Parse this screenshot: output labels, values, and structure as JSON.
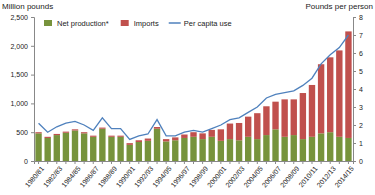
{
  "chart_data": {
    "type": "bar",
    "stacked": true,
    "legend": "top-left",
    "grid": false,
    "y_label": "Million pounds",
    "y2_label": "Pounds per person",
    "categories": [
      "1980/81",
      null,
      "1982/83",
      null,
      "1984/85",
      null,
      "1986/87",
      null,
      "1988/89",
      null,
      "1990/91",
      null,
      "1992/93",
      null,
      "1994/95",
      null,
      "1996/97",
      null,
      "1998/99",
      null,
      "2000/01",
      null,
      "2002/03",
      null,
      "2004/05",
      null,
      "2006/07",
      null,
      "2008/09",
      null,
      "2010/11",
      null,
      "2012/13",
      null,
      "2014/15"
    ],
    "ylim": [
      0,
      2500
    ],
    "yticks": [
      0,
      500,
      {
        "value": 1000,
        "label": "1,000"
      },
      {
        "value": 1500,
        "label": "1,500"
      },
      {
        "value": 2000,
        "label": "2,000"
      },
      {
        "value": 2500,
        "label": "2,500"
      }
    ],
    "y2lim": [
      0,
      8
    ],
    "y2ticks": [
      0,
      1,
      2,
      3,
      4,
      5,
      6,
      7,
      8
    ],
    "series": [
      {
        "name": "Net production*",
        "type": "bar",
        "color": "#77933c",
        "values": [
          480,
          400,
          450,
          490,
          530,
          480,
          420,
          560,
          420,
          420,
          280,
          330,
          350,
          560,
          340,
          360,
          400,
          420,
          380,
          420,
          350,
          380,
          360,
          420,
          380,
          450,
          550,
          420,
          450,
          380,
          420,
          480,
          500,
          420,
          400
        ]
      },
      {
        "name": "Imports",
        "type": "bar",
        "color": "#c0504d",
        "values": [
          20,
          20,
          20,
          20,
          20,
          20,
          20,
          20,
          20,
          20,
          30,
          30,
          40,
          30,
          40,
          50,
          60,
          80,
          100,
          120,
          200,
          270,
          300,
          350,
          450,
          500,
          480,
          650,
          620,
          800,
          900,
          1200,
          1300,
          1500,
          1850
        ]
      },
      {
        "name": "Per capita use",
        "type": "line",
        "axis": "y2",
        "color": "#4f81bd",
        "values": [
          2.1,
          1.6,
          1.9,
          2.1,
          2.2,
          2.0,
          1.7,
          2.4,
          1.8,
          1.8,
          1.2,
          1.4,
          1.5,
          2.3,
          1.4,
          1.4,
          1.6,
          1.7,
          1.6,
          1.8,
          2.0,
          2.3,
          2.4,
          2.7,
          3.0,
          3.5,
          3.7,
          3.8,
          3.9,
          4.2,
          4.6,
          5.4,
          5.9,
          6.3,
          7.0
        ]
      }
    ]
  }
}
